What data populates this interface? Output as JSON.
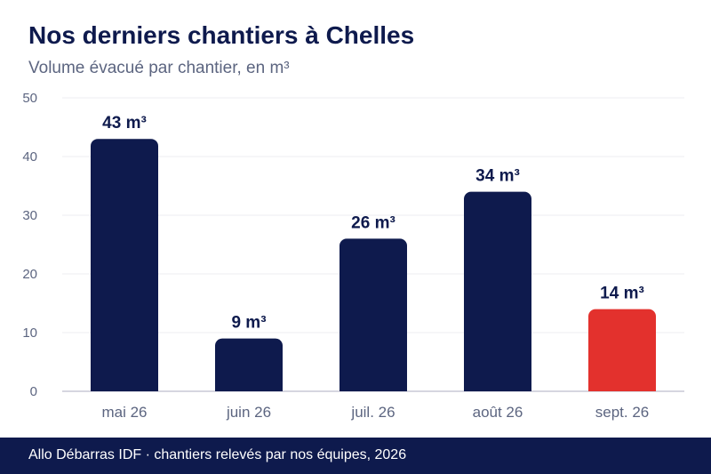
{
  "chart_data": {
    "type": "bar",
    "title": "Nos derniers chantiers à Chelles",
    "subtitle": "Volume évacué par chantier, en m³",
    "categories": [
      "mai 26",
      "juin 26",
      "juil. 26",
      "août 26",
      "sept. 26"
    ],
    "values": [
      43,
      9,
      26,
      34,
      14
    ],
    "data_labels": [
      "43 m³",
      "9 m³",
      "26 m³",
      "34 m³",
      "14 m³"
    ],
    "ylim": [
      0,
      50
    ],
    "yticks": [
      0,
      10,
      20,
      30,
      40,
      50
    ],
    "grid": true,
    "legend": "none",
    "colors": {
      "bar": "#0e1a4d",
      "highlight": "#e3312d",
      "highlight_index": 4
    }
  },
  "footer": {
    "text": "Allo Débarras IDF · chantiers relevés par nos équipes, 2026"
  }
}
